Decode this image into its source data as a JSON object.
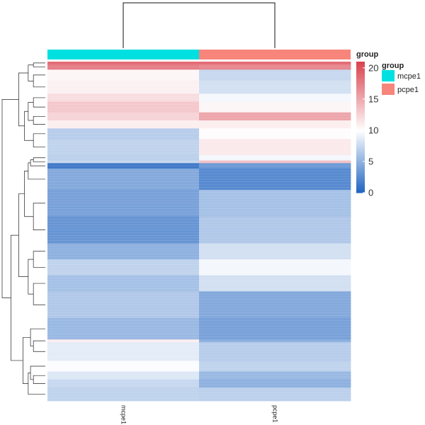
{
  "chart_data": {
    "type": "heatmap",
    "columns": [
      "mcpe1",
      "pcpe1"
    ],
    "column_groups": [
      "mcpe1",
      "pcpe1"
    ],
    "color_scale": {
      "min": 0,
      "max": 21,
      "ticks": [
        0,
        5,
        10,
        15,
        20
      ],
      "low_color": "#1f63c0",
      "mid_value": 10,
      "mid_color": "#ffffff",
      "high_color": "#d9424e"
    },
    "heat_legend_title": "group",
    "group_legend": {
      "title": "group",
      "items": [
        {
          "label": "mcpe1",
          "color": "#00e0e0"
        },
        {
          "label": "pcpe1",
          "color": "#f8857b"
        }
      ]
    },
    "row_blocks": [
      {
        "rows": 1,
        "values": [
          18.5,
          18.5
        ]
      },
      {
        "rows": 2,
        "values": [
          17.5,
          17.0
        ]
      },
      {
        "rows": 4,
        "values": [
          10.5,
          7.5
        ]
      },
      {
        "rows": 5,
        "values": [
          10.8,
          8.0
        ]
      },
      {
        "rows": 3,
        "values": [
          12.0,
          9.5
        ]
      },
      {
        "rows": 4,
        "values": [
          13.2,
          10.5
        ]
      },
      {
        "rows": 3,
        "values": [
          12.5,
          15.2
        ]
      },
      {
        "rows": 3,
        "values": [
          11.0,
          11.0
        ]
      },
      {
        "rows": 4,
        "values": [
          6.8,
          10.2
        ]
      },
      {
        "rows": 6,
        "values": [
          7.2,
          11.2
        ]
      },
      {
        "rows": 2,
        "values": [
          7.0,
          9.5
        ]
      },
      {
        "rows": 1,
        "values": [
          7.5,
          13.5
        ]
      },
      {
        "rows": 2,
        "values": [
          1.5,
          3.5
        ]
      },
      {
        "rows": 8,
        "values": [
          4.5,
          2.5
        ]
      },
      {
        "rows": 10,
        "values": [
          4.0,
          6.0
        ]
      },
      {
        "rows": 10,
        "values": [
          3.2,
          6.5
        ]
      },
      {
        "rows": 6,
        "values": [
          5.0,
          8.0
        ]
      },
      {
        "rows": 6,
        "values": [
          7.2,
          9.5
        ]
      },
      {
        "rows": 6,
        "values": [
          6.0,
          8.0
        ]
      },
      {
        "rows": 10,
        "values": [
          6.5,
          4.5
        ]
      },
      {
        "rows": 8,
        "values": [
          5.5,
          4.0
        ]
      },
      {
        "rows": 1,
        "values": [
          11.0,
          5.0
        ]
      },
      {
        "rows": 7,
        "values": [
          8.8,
          6.8
        ]
      },
      {
        "rows": 4,
        "values": [
          9.8,
          7.2
        ]
      },
      {
        "rows": 3,
        "values": [
          8.5,
          5.5
        ]
      },
      {
        "rows": 3,
        "values": [
          7.5,
          5.0
        ]
      },
      {
        "rows": 5,
        "values": [
          7.2,
          7.0
        ]
      }
    ]
  }
}
